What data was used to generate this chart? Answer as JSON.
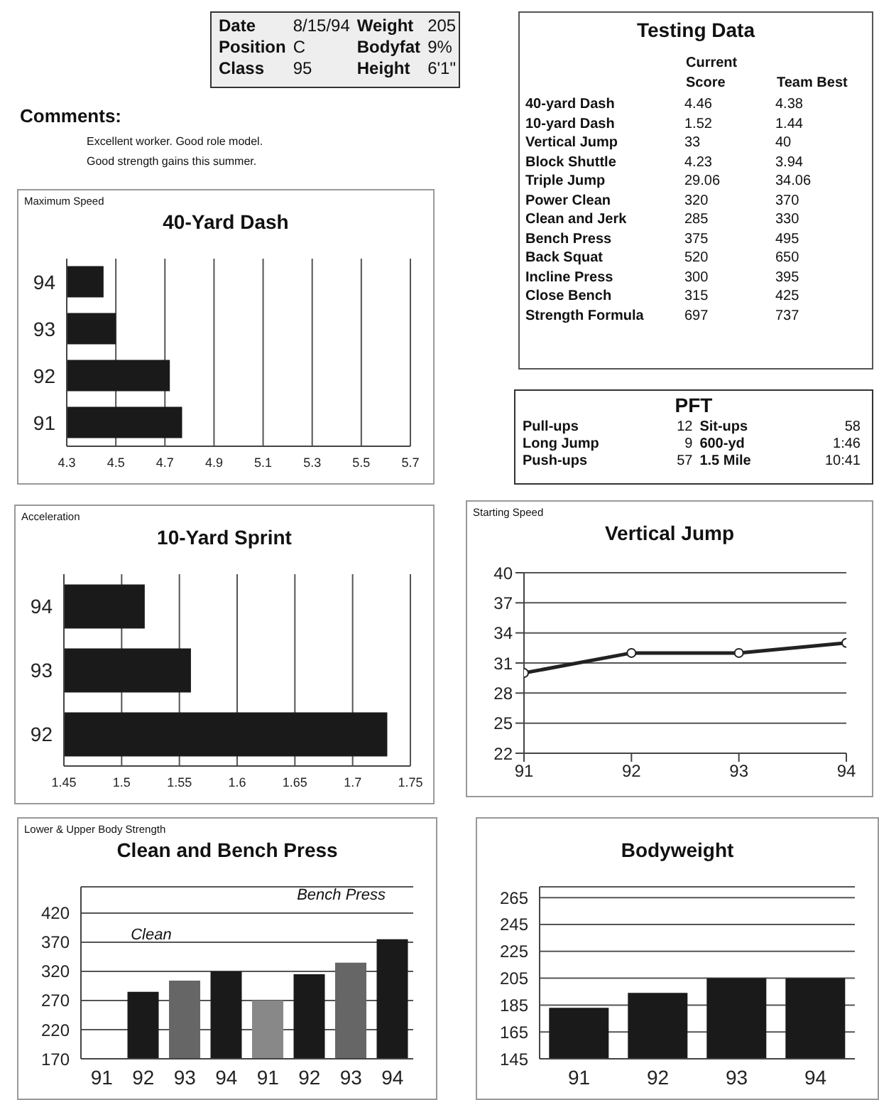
{
  "chart_data": [
    {
      "type": "other",
      "annotations": [
        "Date",
        "8/15/94",
        "Weight",
        "205",
        "Position",
        "C",
        "Bodyfat",
        "9%",
        "Class",
        "95",
        "Height",
        "6'1\""
      ]
    },
    {
      "type": "other",
      "title": "Testing Data",
      "categories": [
        "40-yard Dash",
        "10-yard Dash",
        "Vertical Jump",
        "Block Shuttle",
        "Triple Jump",
        "Power Clean",
        "Clean and Jerk",
        "Bench Press",
        "Back Squat",
        "Incline Press",
        "Close Bench",
        "Strength Formula"
      ],
      "data_labels": true,
      "series": [
        {
          "name": "Current Score",
          "values": [
            4.46,
            1.52,
            33,
            4.23,
            29.06,
            320,
            285,
            375,
            520,
            300,
            315,
            697
          ]
        },
        {
          "name": "Team Best",
          "values": [
            4.38,
            1.44,
            40,
            3.94,
            34.06,
            370,
            330,
            495,
            650,
            395,
            425,
            737
          ]
        }
      ]
    },
    {
      "type": "other",
      "title": "Comments:",
      "annotations": [
        "Excellent worker. Good role model.",
        "Good strength gains this summer."
      ]
    },
    {
      "type": "bar",
      "orientation": "horizontal",
      "subtitle": "Maximum Speed",
      "title": "40-Yard Dash",
      "categories": [
        "94",
        "93",
        "92",
        "91"
      ],
      "values": [
        4.45,
        4.5,
        4.72,
        4.77
      ],
      "color": "#1a1a1a",
      "xlim": [
        4.3,
        5.7
      ],
      "xticks": [
        4.3,
        4.5,
        4.7,
        4.9,
        5.1,
        5.3,
        5.5,
        5.7
      ],
      "grid": "x"
    },
    {
      "type": "other",
      "title": "PFT",
      "annotations": [
        "Pull-ups",
        "12",
        "Sit-ups",
        "58",
        "Long Jump",
        "9",
        "600-yd",
        "1:46",
        "Push-ups",
        "57",
        "1.5 Mile",
        "10:41"
      ]
    },
    {
      "type": "bar",
      "orientation": "horizontal",
      "subtitle": "Acceleration",
      "title": "10-Yard Sprint",
      "categories": [
        "94",
        "93",
        "92"
      ],
      "values": [
        1.52,
        1.56,
        1.73
      ],
      "color": "#1a1a1a",
      "xlim": [
        1.45,
        1.75
      ],
      "xticks": [
        1.45,
        1.5,
        1.55,
        1.6,
        1.65,
        1.7,
        1.75
      ],
      "grid": "x"
    },
    {
      "type": "line",
      "subtitle": "Starting Speed",
      "title": "Vertical Jump",
      "x": [
        91,
        92,
        93,
        94
      ],
      "values": [
        30,
        32,
        32,
        33
      ],
      "color": "#222222",
      "marker": "circle",
      "xlim": [
        91,
        94
      ],
      "xticks": [
        91,
        92,
        93,
        94
      ],
      "ylim": [
        22,
        40
      ],
      "yticks": [
        22,
        25,
        28,
        31,
        34,
        37,
        40
      ],
      "grid": "y"
    },
    {
      "type": "bar",
      "subtitle": "Lower & Upper Body Strength",
      "title": "Clean and Bench Press",
      "categories": [
        "91",
        "92",
        "93",
        "94",
        "91",
        "92",
        "93",
        "94"
      ],
      "values": [
        null,
        285,
        304,
        320,
        270,
        315,
        335,
        375
      ],
      "colors": [
        "#1a1a1a",
        "#1a1a1a",
        "#666666",
        "#1a1a1a",
        "#888888",
        "#1a1a1a",
        "#666666",
        "#1a1a1a"
      ],
      "ylim": [
        170,
        465
      ],
      "yticks": [
        170,
        220,
        270,
        320,
        370,
        420
      ],
      "grid": "y",
      "annotations": [
        "Clean",
        "Bench Press"
      ]
    },
    {
      "type": "bar",
      "title": "Bodyweight",
      "categories": [
        "91",
        "92",
        "93",
        "94"
      ],
      "values": [
        183,
        194,
        205,
        205
      ],
      "color": "#1a1a1a",
      "ylim": [
        145,
        273
      ],
      "yticks": [
        145,
        165,
        185,
        205,
        225,
        245,
        265
      ],
      "grid": "y"
    }
  ]
}
